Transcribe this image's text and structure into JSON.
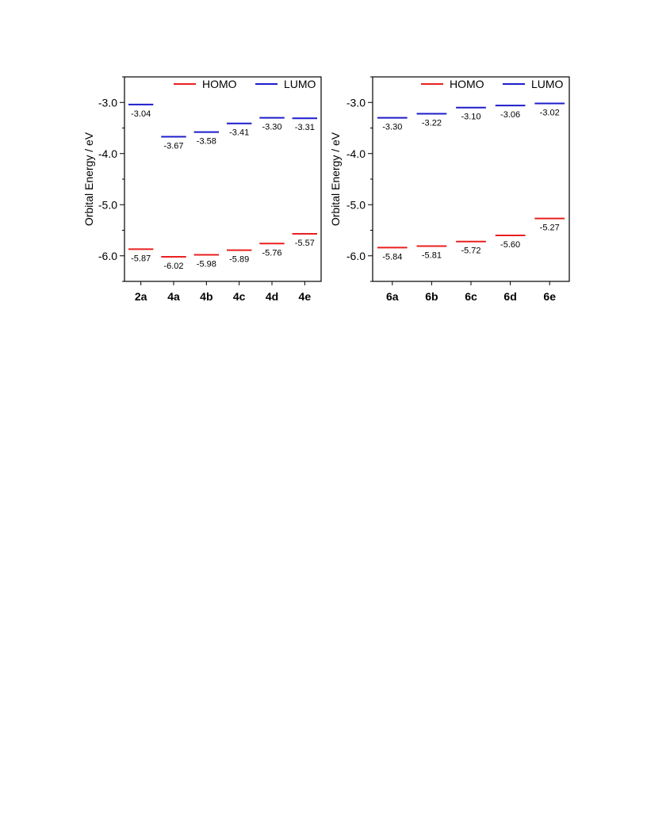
{
  "chart_data": [
    {
      "type": "energy-level",
      "ylabel": "Orbital Energy / eV",
      "ylim": [
        -6.5,
        -2.5
      ],
      "yticks": [
        -3.0,
        -4.0,
        -5.0,
        -6.0
      ],
      "ytick_labels": [
        "-3.0",
        "-4.0",
        "-5.0",
        "-6.0"
      ],
      "categories": [
        "2a",
        "4a",
        "4b",
        "4c",
        "4d",
        "4e"
      ],
      "legend": {
        "position": "top-right"
      },
      "series": [
        {
          "name": "HOMO",
          "color": "#e8201f",
          "values": [
            -5.87,
            -6.02,
            -5.98,
            -5.89,
            -5.76,
            -5.57
          ],
          "labels": [
            "-5.87",
            "-6.02",
            "-5.98",
            "-5.89",
            "-5.76",
            "-5.57"
          ]
        },
        {
          "name": "LUMO",
          "color": "#1c1ccc",
          "values": [
            -3.04,
            -3.67,
            -3.58,
            -3.41,
            -3.3,
            -3.31
          ],
          "labels": [
            "-3.04",
            "-3.67",
            "-3.58",
            "-3.41",
            "-3.30",
            "-3.31"
          ]
        }
      ]
    },
    {
      "type": "energy-level",
      "ylabel": "Orbital Energy / eV",
      "ylim": [
        -6.5,
        -2.5
      ],
      "yticks": [
        -3.0,
        -4.0,
        -5.0,
        -6.0
      ],
      "ytick_labels": [
        "-3.0",
        "-4.0",
        "-5.0",
        "-6.0"
      ],
      "categories": [
        "6a",
        "6b",
        "6c",
        "6d",
        "6e"
      ],
      "legend": {
        "position": "top-right"
      },
      "series": [
        {
          "name": "HOMO",
          "color": "#e8201f",
          "values": [
            -5.84,
            -5.81,
            -5.72,
            -5.6,
            -5.27
          ],
          "labels": [
            "-5.84",
            "-5.81",
            "-5.72",
            "-5.60",
            "-5.27"
          ]
        },
        {
          "name": "LUMO",
          "color": "#1c1ccc",
          "values": [
            -3.3,
            -3.22,
            -3.1,
            -3.06,
            -3.02
          ],
          "labels": [
            "-3.30",
            "-3.22",
            "-3.10",
            "-3.06",
            "-3.02"
          ]
        }
      ]
    }
  ]
}
